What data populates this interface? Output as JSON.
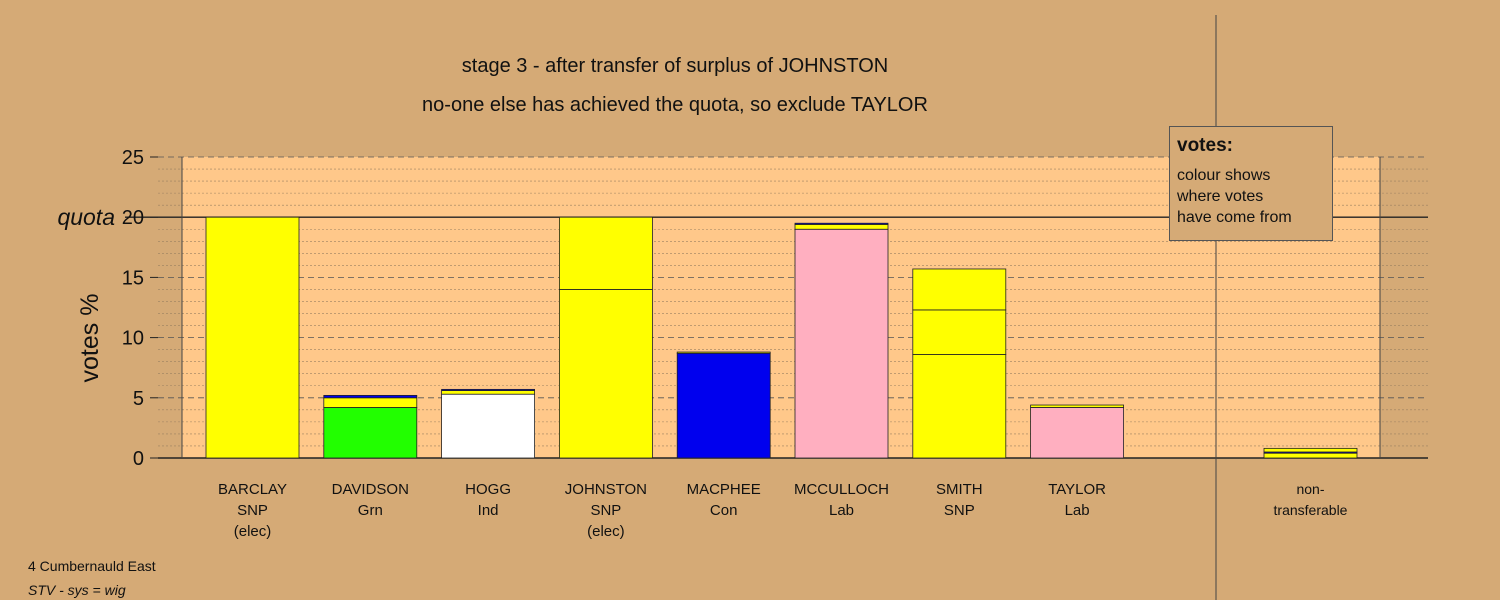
{
  "chart_data": {
    "type": "bar",
    "title": "stage 3 - after transfer of surplus of JOHNSTON",
    "subtitle": "no-one else has achieved the quota, so exclude TAYLOR",
    "ylabel": "votes %",
    "ylim": [
      0,
      25
    ],
    "yticks": [
      "0",
      "5",
      "10",
      "15",
      "20",
      "25"
    ],
    "quota_label": "quota",
    "quota": 20,
    "stacked": true,
    "grid": true,
    "colors": {
      "SNP": "#ffff00",
      "Grn": "#22ff00",
      "Ind": "#ffffff",
      "Con": "#0000ee",
      "Lab": "#ffafc0",
      "plot_band": "#ffc88a",
      "background": "#d5aa76"
    },
    "candidates": [
      {
        "name": "BARCLAY",
        "party": "SNP",
        "status": "(elec)",
        "segments": [
          {
            "from": "SNP",
            "value": 20.0
          }
        ]
      },
      {
        "name": "DAVIDSON",
        "party": "Grn",
        "status": "",
        "segments": [
          {
            "from": "Grn",
            "value": 4.2
          },
          {
            "from": "SNP",
            "value": 0.8
          },
          {
            "from": "Con",
            "value": 0.2
          }
        ]
      },
      {
        "name": "HOGG",
        "party": "Ind",
        "status": "",
        "segments": [
          {
            "from": "Ind",
            "value": 5.3
          },
          {
            "from": "SNP",
            "value": 0.3
          },
          {
            "from": "Con",
            "value": 0.1
          }
        ]
      },
      {
        "name": "JOHNSTON",
        "party": "SNP",
        "status": "(elec)",
        "segments": [
          {
            "from": "SNP",
            "value": 14.0
          },
          {
            "from": "SNP",
            "value": 6.0
          }
        ]
      },
      {
        "name": "MACPHEE",
        "party": "Con",
        "status": "",
        "segments": [
          {
            "from": "Con",
            "value": 8.7
          },
          {
            "from": "SNP",
            "value": 0.1
          }
        ]
      },
      {
        "name": "MCCULLOCH",
        "party": "Lab",
        "status": "",
        "segments": [
          {
            "from": "Lab",
            "value": 19.0
          },
          {
            "from": "SNP",
            "value": 0.4
          },
          {
            "from": "Con",
            "value": 0.1
          }
        ]
      },
      {
        "name": "SMITH",
        "party": "SNP",
        "status": "",
        "segments": [
          {
            "from": "SNP",
            "value": 8.6
          },
          {
            "from": "SNP",
            "value": 3.7
          },
          {
            "from": "SNP",
            "value": 3.4
          }
        ]
      },
      {
        "name": "TAYLOR",
        "party": "Lab",
        "status": "",
        "segments": [
          {
            "from": "Lab",
            "value": 4.2
          },
          {
            "from": "SNP",
            "value": 0.2
          }
        ]
      }
    ],
    "nontransferable": {
      "label_line1": "non-",
      "label_line2": "transferable",
      "segments": [
        {
          "from": "SNP",
          "value": 0.4
        },
        {
          "from": "Con",
          "value": 0.1
        },
        {
          "from": "SNP",
          "value": 0.3
        }
      ]
    }
  },
  "legend": {
    "title": "votes:",
    "line1": "colour shows",
    "line2": "where votes",
    "line3": "have come from"
  },
  "footer": {
    "ward": "4 Cumbernauld East",
    "system": "STV - sys = wig"
  }
}
